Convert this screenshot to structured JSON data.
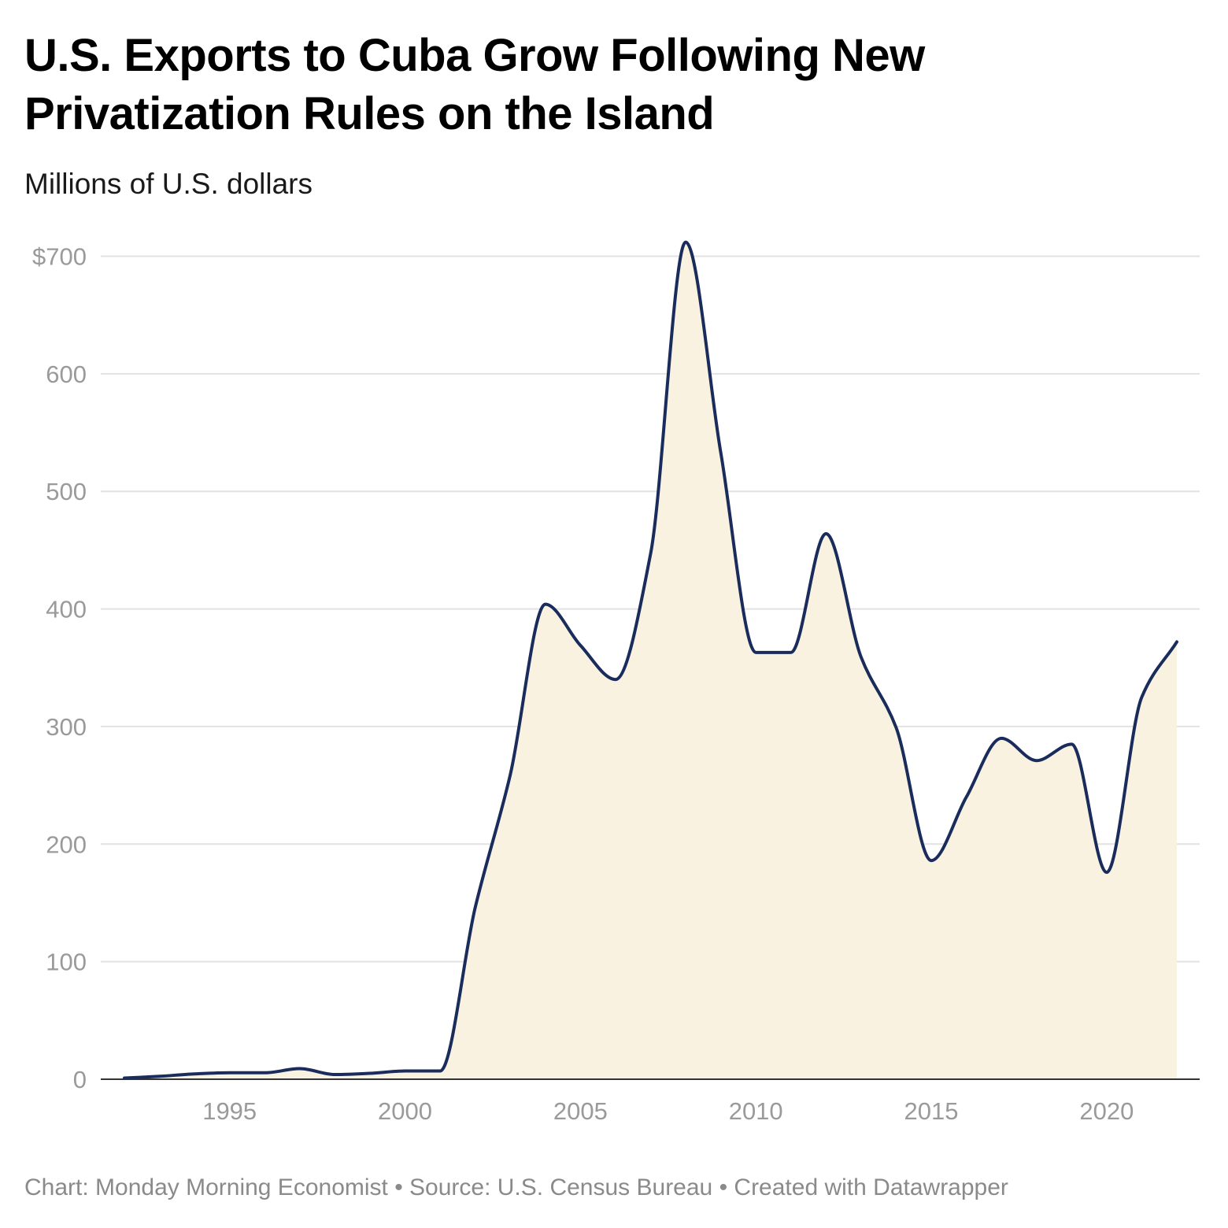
{
  "chart_data": {
    "type": "area",
    "title": "U.S. Exports to Cuba Grow Following New Privatization Rules on the Island",
    "subtitle": "Millions of U.S. dollars",
    "footer": "Chart: Monday Morning Economist • Source: U.S. Census Bureau • Created with Datawrapper",
    "x": [
      1992,
      1993,
      1994,
      1995,
      1996,
      1997,
      1998,
      1999,
      2000,
      2001,
      2002,
      2003,
      2004,
      2005,
      2006,
      2007,
      2008,
      2009,
      2010,
      2011,
      2012,
      2013,
      2014,
      2015,
      2016,
      2017,
      2018,
      2019,
      2020,
      2021,
      2022
    ],
    "series": [
      {
        "values": [
          1,
          2.5,
          4.5,
          5.5,
          5.5,
          9,
          4,
          5,
          7,
          7,
          146,
          259,
          404,
          369,
          340,
          447,
          712,
          533,
          363,
          363,
          464,
          359,
          299,
          186,
          240,
          290,
          271,
          285,
          176,
          325,
          372
        ]
      }
    ],
    "xlim": [
      1991.5,
      2022.8
    ],
    "ylim": [
      0,
      730
    ],
    "x_ticks": [
      1995,
      2000,
      2005,
      2010,
      2015,
      2020
    ],
    "y_ticks": [
      0,
      100,
      200,
      300,
      400,
      500,
      600,
      700
    ],
    "y_tick_labels": [
      "0",
      "100",
      "200",
      "300",
      "400",
      "500",
      "600",
      "$700"
    ],
    "grid": true,
    "colors": {
      "line": "#1a2c5b",
      "fill": "#f9f2e1",
      "grid": "#e2e2e2",
      "axis": "#333333",
      "tick_text": "#9a9a9a"
    }
  }
}
